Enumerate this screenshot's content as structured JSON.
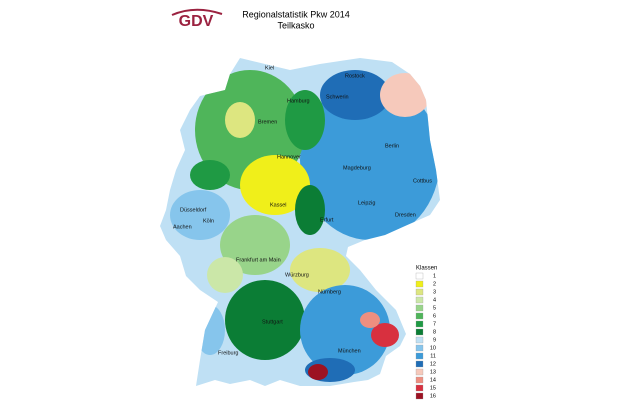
{
  "header": {
    "logo": "GDV",
    "title": "Regionalstatistik Pkw 2014",
    "subtitle": "Teilkasko"
  },
  "cities": [
    "Kiel",
    "Rostock",
    "Schwerin",
    "Hamburg",
    "Bremen",
    "Berlin",
    "Hannover",
    "Magdeburg",
    "Cottbus",
    "Leipzig",
    "Dresden",
    "Kassel",
    "Erfurt",
    "Düsseldorf",
    "Köln",
    "Aachen",
    "Frankfurt am Main",
    "Würzburg",
    "Nürnberg",
    "Stuttgart",
    "Freiburg",
    "München"
  ],
  "legend": {
    "title": "Klassen",
    "items": [
      {
        "label": "1",
        "color": "#ffffff"
      },
      {
        "label": "2",
        "color": "#f0ef1a"
      },
      {
        "label": "3",
        "color": "#dde680"
      },
      {
        "label": "4",
        "color": "#cbe7a8"
      },
      {
        "label": "5",
        "color": "#98d48a"
      },
      {
        "label": "6",
        "color": "#4fb55a"
      },
      {
        "label": "7",
        "color": "#1f9a44"
      },
      {
        "label": "8",
        "color": "#0b7d35"
      },
      {
        "label": "9",
        "color": "#bfe0f4"
      },
      {
        "label": "10",
        "color": "#86c5ec"
      },
      {
        "label": "11",
        "color": "#3c9bd9"
      },
      {
        "label": "12",
        "color": "#1f6db6"
      },
      {
        "label": "13",
        "color": "#f6c9bb"
      },
      {
        "label": "14",
        "color": "#ee8f80"
      },
      {
        "label": "15",
        "color": "#d8303f"
      },
      {
        "label": "16",
        "color": "#9c1222"
      }
    ]
  }
}
